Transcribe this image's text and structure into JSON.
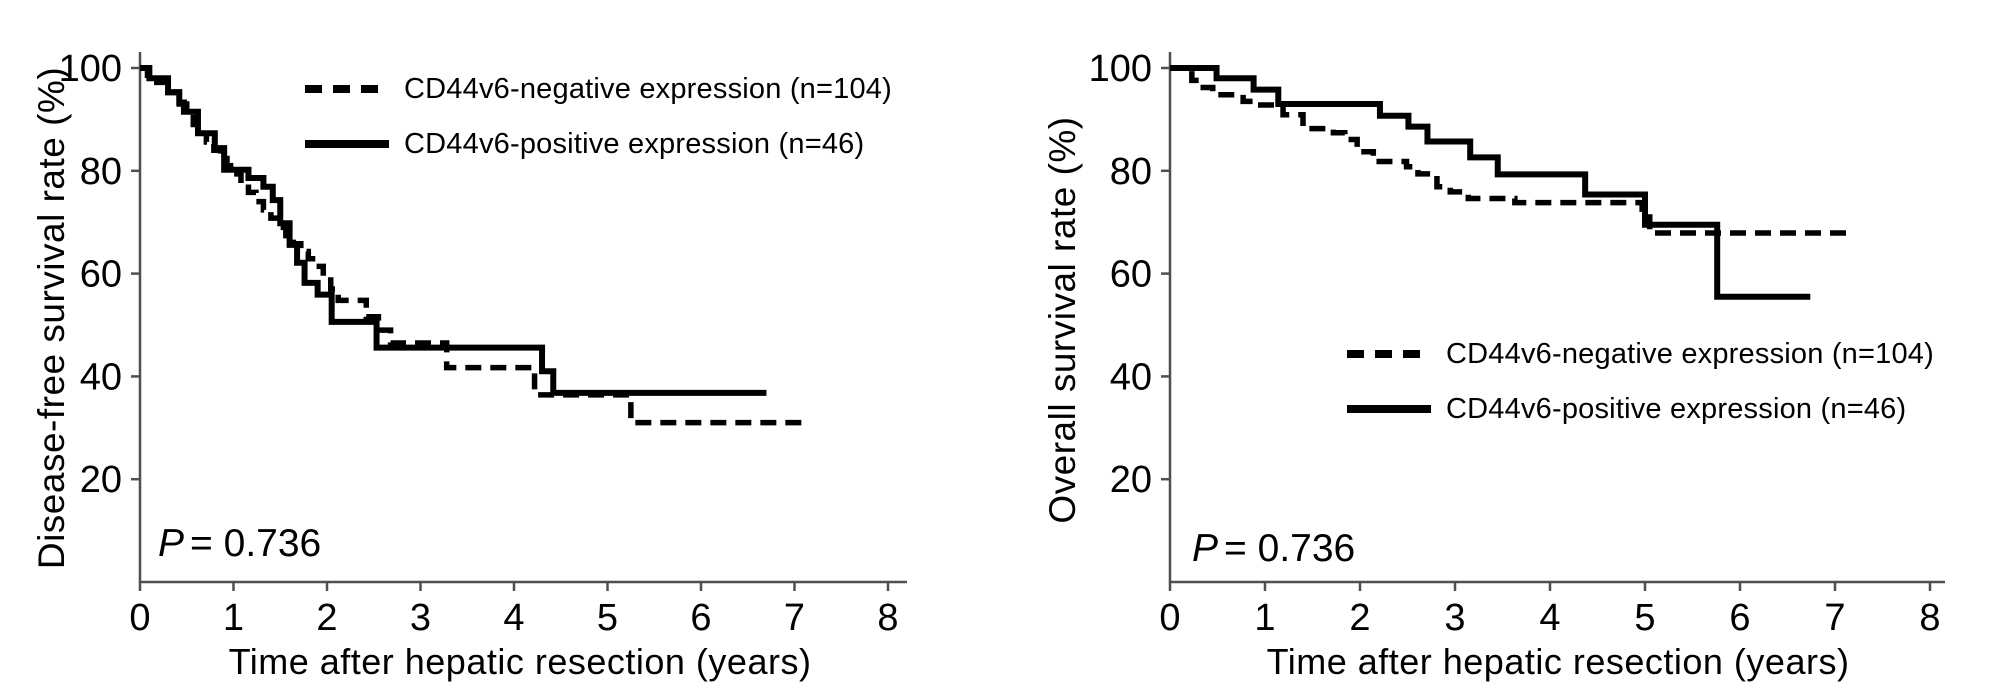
{
  "chart_data": [
    {
      "type": "line",
      "variant": "kaplan-meier-step",
      "panel": "disease-free-survival",
      "xlabel": "Time after hepatic resection (years)",
      "ylabel": "Disease-free survival rate (%)",
      "xlim": [
        0,
        8
      ],
      "ylim": [
        0,
        100
      ],
      "xticks": [
        0,
        1,
        2,
        3,
        4,
        5,
        6,
        7,
        8
      ],
      "yticks": [
        20,
        40,
        60,
        80,
        100
      ],
      "grid": false,
      "legend_position": "top-right-inside",
      "annotation": {
        "italic": "P",
        "rest": "= 0.736"
      },
      "series": [
        {
          "name": "CD44v6-negative expression (n=104)",
          "n": 104,
          "line_style": "dashed",
          "color": "#000000",
          "end_time": 7.13,
          "steps": [
            [
              0,
              100
            ],
            [
              0.08,
              98.6
            ],
            [
              0.18,
              97.2
            ],
            [
              0.3,
              95.2
            ],
            [
              0.42,
              93
            ],
            [
              0.5,
              91
            ],
            [
              0.57,
              89
            ],
            [
              0.64,
              87.3
            ],
            [
              0.71,
              85.6
            ],
            [
              0.79,
              84
            ],
            [
              0.86,
              82.4
            ],
            [
              0.93,
              81
            ],
            [
              1.0,
              79.4
            ],
            [
              1.08,
              77.6
            ],
            [
              1.16,
              75.8
            ],
            [
              1.24,
              74
            ],
            [
              1.32,
              72.4
            ],
            [
              1.4,
              70.8
            ],
            [
              1.48,
              69
            ],
            [
              1.56,
              67.4
            ],
            [
              1.64,
              65.8
            ],
            [
              1.72,
              64.3
            ],
            [
              1.8,
              62.9
            ],
            [
              1.88,
              61.4
            ],
            [
              1.96,
              59.4
            ],
            [
              2.04,
              57
            ],
            [
              2.12,
              54.8
            ],
            [
              2.42,
              51.6
            ],
            [
              2.55,
              49
            ],
            [
              2.68,
              46.5
            ],
            [
              3.28,
              41.7
            ],
            [
              4.22,
              36.4
            ],
            [
              5.25,
              31
            ]
          ]
        },
        {
          "name": "CD44v6-positive expression  (n=46)",
          "n": 46,
          "line_style": "solid",
          "color": "#000000",
          "end_time": 6.7,
          "steps": [
            [
              0,
              100
            ],
            [
              0.1,
              98
            ],
            [
              0.3,
              95.3
            ],
            [
              0.42,
              93.3
            ],
            [
              0.47,
              91.5
            ],
            [
              0.62,
              87.3
            ],
            [
              0.8,
              84.4
            ],
            [
              0.9,
              80.2
            ],
            [
              1.16,
              78.6
            ],
            [
              1.32,
              76.9
            ],
            [
              1.42,
              74.3
            ],
            [
              1.5,
              69.8
            ],
            [
              1.6,
              65.6
            ],
            [
              1.68,
              62.1
            ],
            [
              1.76,
              58.2
            ],
            [
              1.9,
              55.9
            ],
            [
              2.05,
              50.6
            ],
            [
              2.53,
              45.6
            ],
            [
              4.3,
              41
            ],
            [
              4.42,
              36.8
            ]
          ]
        }
      ]
    },
    {
      "type": "line",
      "variant": "kaplan-meier-step",
      "panel": "overall-survival",
      "xlabel": "Time after hepatic resection (years)",
      "ylabel": "Overall  survival  rate (%)",
      "xlim": [
        0,
        8
      ],
      "ylim": [
        0,
        100
      ],
      "xticks": [
        0,
        1,
        2,
        3,
        4,
        5,
        6,
        7,
        8
      ],
      "yticks": [
        20,
        40,
        60,
        80,
        100
      ],
      "grid": false,
      "legend_position": "middle-right-inside",
      "annotation": {
        "italic": "P",
        "rest": "= 0.736"
      },
      "series": [
        {
          "name": "CD44v6-negative expression (n=104)",
          "n": 104,
          "line_style": "dashed",
          "color": "#000000",
          "end_time": 7.15,
          "steps": [
            [
              0,
              100
            ],
            [
              0.23,
              97.6
            ],
            [
              0.35,
              96.2
            ],
            [
              0.45,
              94.8
            ],
            [
              0.77,
              93.5
            ],
            [
              0.89,
              92.8
            ],
            [
              1.19,
              90.9
            ],
            [
              1.4,
              88.2
            ],
            [
              1.72,
              87.4
            ],
            [
              1.84,
              86.1
            ],
            [
              1.97,
              83.7
            ],
            [
              2.14,
              81.8
            ],
            [
              2.49,
              80.8
            ],
            [
              2.61,
              79.4
            ],
            [
              2.81,
              76.9
            ],
            [
              2.95,
              75.9
            ],
            [
              3.14,
              74.6
            ],
            [
              3.63,
              73.8
            ],
            [
              4.97,
              71
            ],
            [
              5.05,
              67.9
            ]
          ]
        },
        {
          "name": "CD44v6-positive expression  (n=46)",
          "n": 46,
          "line_style": "solid",
          "color": "#000000",
          "end_time": 6.74,
          "steps": [
            [
              0,
              100
            ],
            [
              0.49,
              98
            ],
            [
              0.88,
              95.8
            ],
            [
              1.14,
              93
            ],
            [
              2.21,
              90.7
            ],
            [
              2.51,
              88.6
            ],
            [
              2.71,
              85.7
            ],
            [
              3.16,
              82.6
            ],
            [
              3.45,
              79.3
            ],
            [
              4.37,
              75.4
            ],
            [
              5.0,
              69.5
            ],
            [
              5.76,
              55.5
            ]
          ]
        }
      ]
    }
  ]
}
